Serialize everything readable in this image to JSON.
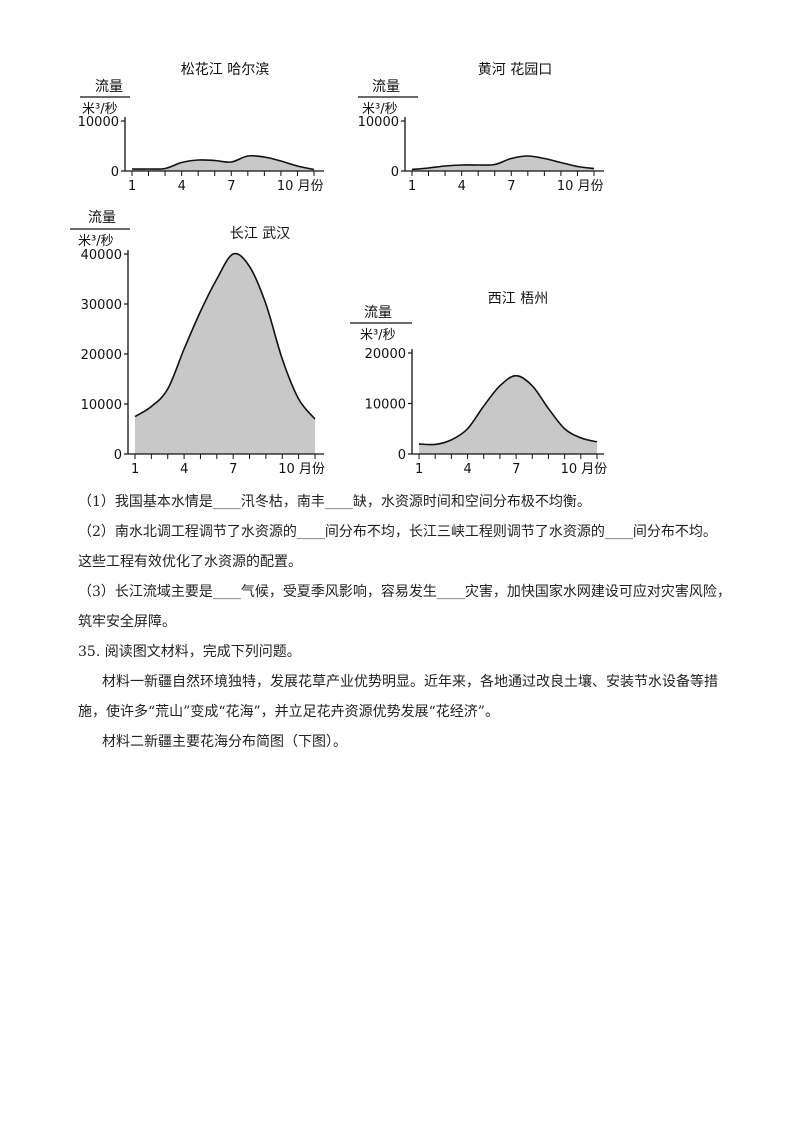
{
  "chart_data": [
    {
      "type": "area",
      "title": "松花江      哈尔滨",
      "ylabel": "流量",
      "yunit": "米³/秒",
      "ylim": [
        0,
        10000
      ],
      "yticks": [
        "10000",
        "0"
      ],
      "xticks": [
        "1",
        "4",
        "7",
        "10 月份"
      ],
      "x": [
        1,
        2,
        3,
        4,
        5,
        6,
        7,
        8,
        9,
        10,
        11,
        12
      ],
      "values": [
        400,
        400,
        500,
        1700,
        2200,
        2100,
        1800,
        3000,
        2800,
        2000,
        1000,
        300
      ]
    },
    {
      "type": "area",
      "title": "黄河     花园口",
      "ylabel": "流量",
      "yunit": "米³/秒",
      "ylim": [
        0,
        10000
      ],
      "yticks": [
        "10000",
        "0"
      ],
      "xticks": [
        "1",
        "4",
        "7",
        "10 月份"
      ],
      "x": [
        1,
        2,
        3,
        4,
        5,
        6,
        7,
        8,
        9,
        10,
        11,
        12
      ],
      "values": [
        300,
        600,
        1000,
        1200,
        1200,
        1300,
        2500,
        3000,
        2500,
        1700,
        900,
        500
      ]
    },
    {
      "type": "area",
      "title": "长江      武汉",
      "ylabel": "流量",
      "yunit": "米³/秒",
      "ylim": [
        0,
        40000
      ],
      "yticks": [
        "40000",
        "30000",
        "20000",
        "10000",
        "0"
      ],
      "xticks": [
        "1",
        "4",
        "7",
        "10 月份"
      ],
      "x": [
        1,
        2,
        3,
        4,
        5,
        6,
        7,
        8,
        9,
        10,
        11,
        12
      ],
      "values": [
        7500,
        9500,
        13000,
        21000,
        28500,
        35000,
        40000,
        37500,
        30000,
        19000,
        11000,
        7000
      ]
    },
    {
      "type": "area",
      "title": "西江     梧州",
      "ylabel": "流量",
      "yunit": "米³/秒",
      "ylim": [
        0,
        20000
      ],
      "yticks": [
        "20000",
        "10000",
        "0"
      ],
      "xticks": [
        "1",
        "4",
        "7",
        "10 月份"
      ],
      "x": [
        1,
        2,
        3,
        4,
        5,
        6,
        7,
        8,
        9,
        10,
        11,
        12
      ],
      "values": [
        2000,
        1900,
        2800,
        5000,
        9500,
        13500,
        15500,
        13500,
        9000,
        5000,
        3200,
        2400
      ]
    }
  ],
  "questions": {
    "q1": "（1）我国基本水情是____汛冬枯，南丰____缺，水资源时间和空间分布极不均衡。",
    "q2a": "（2）南水北调工程调节了水资源的____间分布不均，长江三峡工程则调节了水资源的____间分布不均。",
    "q2b": "这些工程有效优化了水资源的配置。",
    "q3a": "（3）长江流域主要是____气候，受夏季风影响，容易发生____灾害，加快国家水网建设可应对灾害风险，",
    "q3b": "筑牢安全屏障。",
    "q35": "35. 阅读图文材料，完成下列问题。",
    "m1a": "材料一新疆自然环境独特，发展花草产业优势明显。近年来，各地通过改良土壤、安装节水设备等措",
    "m1b": "施，使许多“荒山”变成“花海”，并立足花卉资源优势发展“花经济”。",
    "m2": "材料二新疆主要花海分布简图（下图）。"
  }
}
